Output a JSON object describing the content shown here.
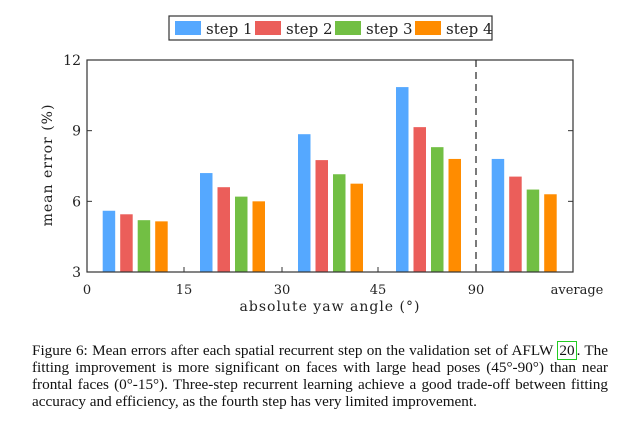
{
  "chart_data": {
    "type": "bar",
    "title": "",
    "xlabel": "absolute yaw angle (°)",
    "ylabel": "mean error (%)",
    "ylim": [
      3,
      12
    ],
    "yticks": [
      "3",
      "6",
      "9",
      "12"
    ],
    "xtick_labels": [
      "0",
      "15",
      "30",
      "45",
      "90",
      "average"
    ],
    "categories": [
      "0-15",
      "15-30",
      "30-45",
      "45-90",
      "average"
    ],
    "series": [
      {
        "name": "step 1",
        "color": "#55A8FF",
        "values": [
          5.6,
          7.2,
          8.85,
          10.85,
          7.8
        ]
      },
      {
        "name": "step 2",
        "color": "#EB5E5A",
        "values": [
          5.45,
          6.6,
          7.75,
          9.15,
          7.05
        ]
      },
      {
        "name": "step 3",
        "color": "#72BF44",
        "values": [
          5.2,
          6.2,
          7.15,
          8.3,
          6.5
        ]
      },
      {
        "name": "step 4",
        "color": "#FF8C00",
        "values": [
          5.15,
          6.0,
          6.75,
          7.8,
          6.3
        ]
      }
    ],
    "legend_position": "top",
    "grid": false,
    "separator": "dashed line at 90"
  },
  "caption": {
    "label": "Figure 6:",
    "text_before_ref": "Mean errors after each spatial recurrent step on the validation set of AFLW",
    "ref": "20",
    "text_after_ref": ". The fitting improvement is more significant on faces with large head poses (45°-90°) than near frontal faces (0°-15°).  Three-step recurrent learning achieve a good trade-off between fitting accuracy and efficiency, as the fourth step has very limited improvement."
  }
}
